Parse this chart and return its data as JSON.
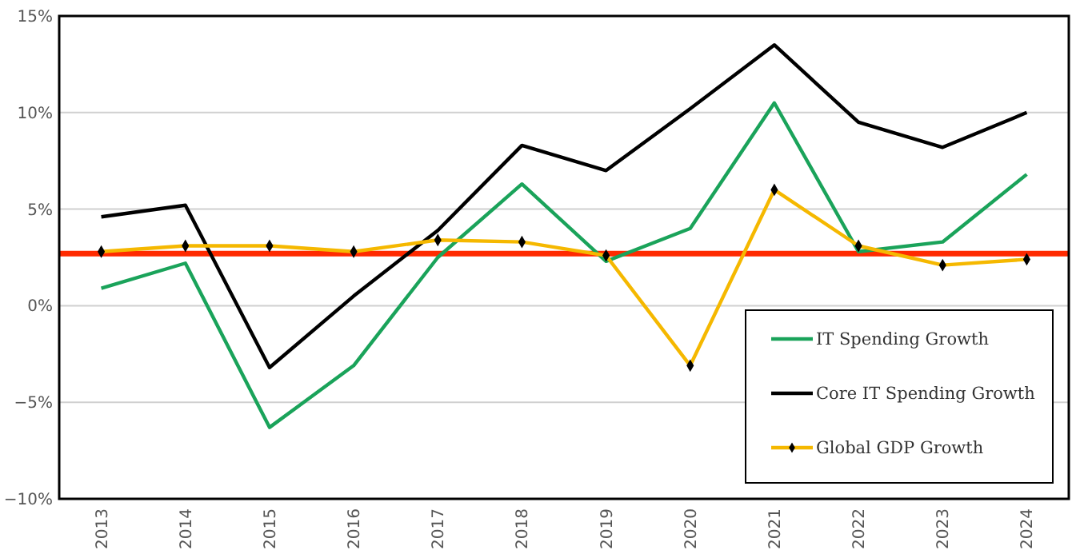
{
  "chart_data": {
    "type": "line",
    "categories": [
      "2013",
      "2014",
      "2015",
      "2016",
      "2017",
      "2018",
      "2019",
      "2020",
      "2021",
      "2022",
      "2023",
      "2024"
    ],
    "series": [
      {
        "name": "IT Spending Growth",
        "color": "#1aa35a",
        "marker": "none",
        "values": [
          0.9,
          2.2,
          -6.3,
          -3.1,
          2.5,
          6.3,
          2.3,
          4.0,
          10.5,
          2.8,
          3.3,
          6.8
        ]
      },
      {
        "name": "Core IT Spending Growth",
        "color": "#000000",
        "marker": "none",
        "values": [
          4.6,
          5.2,
          -3.2,
          0.5,
          3.9,
          8.3,
          7.0,
          10.2,
          13.5,
          9.5,
          8.2,
          10.0
        ]
      },
      {
        "name": "Global GDP Growth",
        "color": "#f5b800",
        "marker": "diamond",
        "values": [
          2.8,
          3.1,
          3.1,
          2.8,
          3.4,
          3.3,
          2.6,
          -3.1,
          6.0,
          3.1,
          2.1,
          2.4
        ]
      }
    ],
    "ylim": [
      -10,
      15
    ],
    "yticks": [
      {
        "value": -10,
        "label": "−10%"
      },
      {
        "value": -5,
        "label": "−5%"
      },
      {
        "value": 0,
        "label": "0%"
      },
      {
        "value": 5,
        "label": "5%"
      },
      {
        "value": 10,
        "label": "10%"
      },
      {
        "value": 15,
        "label": "15%"
      }
    ],
    "ref_lines": [
      {
        "axis": "y",
        "value": 2.7,
        "color": "#ff2a00",
        "line_style": "solid"
      }
    ],
    "grid": "y",
    "legend": "bottom right",
    "line_style": "solid"
  }
}
